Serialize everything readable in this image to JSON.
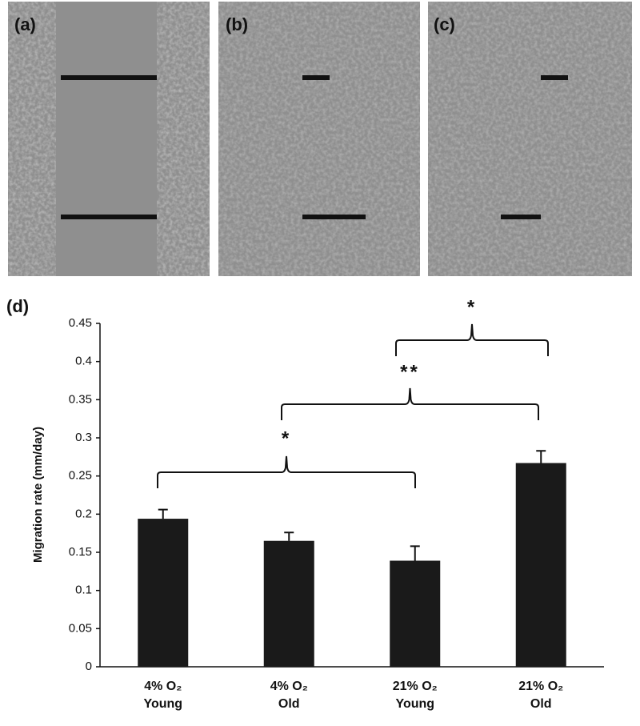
{
  "panel_labels": [
    "(a)",
    "(b)",
    "(c)",
    "(d)"
  ],
  "chart_data": {
    "type": "bar",
    "ylabel": "Migration rate (mm/day)",
    "categories": [
      [
        "4% O₂",
        "Young"
      ],
      [
        "4% O₂",
        "Old"
      ],
      [
        "21% O₂",
        "Young"
      ],
      [
        "21% O₂",
        "Old"
      ]
    ],
    "values": [
      0.194,
      0.165,
      0.139,
      0.267
    ],
    "errors": [
      0.012,
      0.011,
      0.019,
      0.016
    ],
    "color": "#1a1a1a",
    "ylim": [
      0,
      0.45
    ],
    "yticks": [
      0,
      0.05,
      0.1,
      0.15,
      0.2,
      0.25,
      0.3,
      0.35,
      0.4,
      0.45
    ],
    "grid": false,
    "annotations": [
      "*",
      "**",
      "*"
    ]
  }
}
